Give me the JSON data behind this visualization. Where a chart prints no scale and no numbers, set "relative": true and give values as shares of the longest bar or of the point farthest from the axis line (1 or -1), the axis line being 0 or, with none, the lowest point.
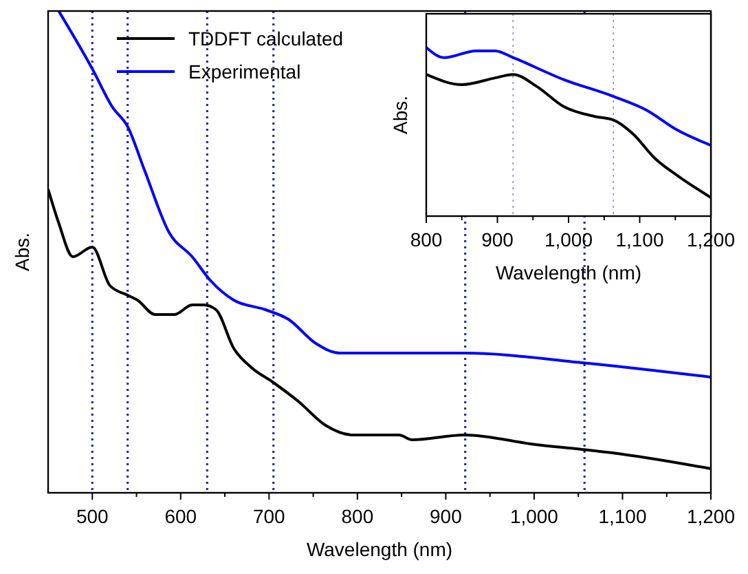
{
  "chart_data": [
    {
      "type": "line",
      "xlabel": "Wavelength (nm)",
      "ylabel": "Abs.",
      "relative": true,
      "tick_labels": "x",
      "legend": "top left",
      "line_style": "solid",
      "xlim": [
        450,
        1200
      ],
      "xticks": [
        500,
        {
          "value": 550,
          "label": null
        },
        600,
        {
          "value": 650,
          "label": null
        },
        700,
        {
          "value": 750,
          "label": null
        },
        800,
        {
          "value": 850,
          "label": null
        },
        900,
        {
          "value": 950,
          "label": null
        },
        {
          "value": 1000,
          "label": "1,000"
        },
        {
          "value": 1050,
          "label": null
        },
        {
          "value": 1100,
          "label": "1,100"
        },
        {
          "value": 1150,
          "label": null
        },
        {
          "value": 1200,
          "label": "1,200"
        }
      ],
      "series": [
        {
          "name": "TDDFT calculated",
          "color": "#000000",
          "x": [
            450,
            462,
            478,
            500,
            520,
            540,
            551,
            571,
            593,
            613,
            626,
            640,
            660,
            680,
            704,
            733,
            764,
            795,
            847,
            862,
            921,
            1002,
            1054,
            1100,
            1200
          ],
          "values": [
            0.63,
            0.56,
            0.49,
            0.51,
            0.43,
            0.41,
            0.4,
            0.37,
            0.37,
            0.39,
            0.39,
            0.38,
            0.3,
            0.26,
            0.23,
            0.19,
            0.14,
            0.12,
            0.12,
            0.11,
            0.12,
            0.1,
            0.09,
            0.08,
            0.05
          ]
        },
        {
          "name": "Experimental",
          "color": "#0000ff",
          "x": [
            462,
            500,
            523,
            540,
            559,
            587,
            613,
            634,
            660,
            696,
            722,
            753,
            780,
            847,
            883,
            921,
            1054,
            1200
          ],
          "values": [
            1.0,
            0.88,
            0.8,
            0.76,
            0.67,
            0.54,
            0.49,
            0.44,
            0.4,
            0.38,
            0.36,
            0.31,
            0.29,
            0.29,
            0.29,
            0.29,
            0.27,
            0.24
          ]
        }
      ],
      "ref_lines": [
        {
          "axis": "x",
          "value": 500,
          "color": "#2a2a9a",
          "line_style": "dotted"
        },
        {
          "axis": "x",
          "value": 540,
          "color": "#2a2a9a",
          "line_style": "dotted"
        },
        {
          "axis": "x",
          "value": 630,
          "color": "#2a2a9a",
          "line_style": "dotted"
        },
        {
          "axis": "x",
          "value": 705,
          "color": "#2a2a9a",
          "line_style": "dotted"
        },
        {
          "axis": "x",
          "value": 922,
          "color": "#2a2a9a",
          "line_style": "dotted"
        },
        {
          "axis": "x",
          "value": 1057,
          "color": "#2a2a9a",
          "line_style": "dotted"
        }
      ]
    },
    {
      "type": "line",
      "xlabel": "Wavelength (nm)",
      "ylabel": "Abs.",
      "relative": true,
      "tick_labels": "x",
      "line_style": "solid",
      "xlim": [
        800,
        1200
      ],
      "xticks": [
        800,
        {
          "value": 850,
          "label": null
        },
        900,
        {
          "value": 950,
          "label": null
        },
        {
          "value": 1000,
          "label": "1,000"
        },
        {
          "value": 1050,
          "label": null
        },
        {
          "value": 1100,
          "label": "1,100"
        },
        {
          "value": 1150,
          "label": null
        },
        {
          "value": 1200,
          "label": "1,200"
        }
      ],
      "series": [
        {
          "color": "#000000",
          "x": [
            800,
            850,
            897,
            922,
            955,
            993,
            1038,
            1063,
            1090,
            1122,
            1153,
            1200
          ],
          "values": [
            0.84,
            0.78,
            0.82,
            0.84,
            0.77,
            0.65,
            0.59,
            0.57,
            0.49,
            0.34,
            0.24,
            0.11
          ]
        },
        {
          "color": "#0000ff",
          "x": [
            800,
            825,
            870,
            897,
            922,
            993,
            1063,
            1109,
            1153,
            1200
          ],
          "values": [
            1.0,
            0.94,
            0.98,
            0.98,
            0.94,
            0.81,
            0.71,
            0.63,
            0.51,
            0.42
          ]
        }
      ],
      "ref_lines": [
        {
          "axis": "x",
          "value": 922,
          "color": "#8888bb",
          "line_style": "dotted"
        },
        {
          "axis": "x",
          "value": 1063,
          "color": "#8888bb",
          "line_style": "dotted"
        }
      ]
    }
  ]
}
